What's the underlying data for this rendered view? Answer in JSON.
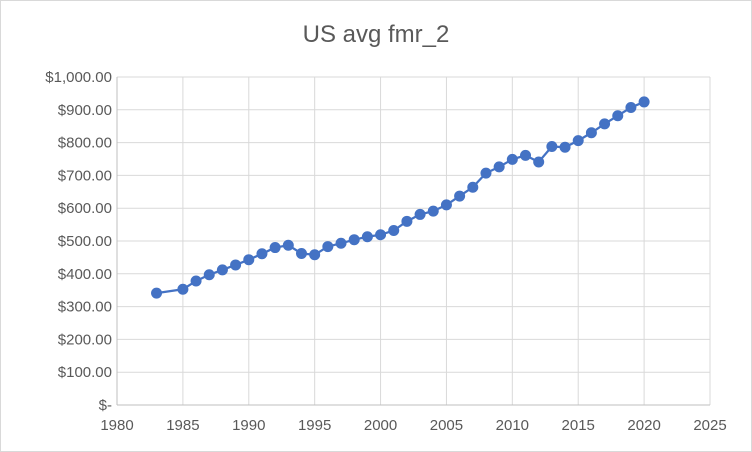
{
  "chart_data": {
    "type": "line",
    "title": "US avg fmr_2",
    "xlabel": "",
    "ylabel": "",
    "xlim": [
      1980,
      2025
    ],
    "ylim": [
      0,
      1000
    ],
    "x_ticks": [
      "1980",
      "1985",
      "1990",
      "1995",
      "2000",
      "2005",
      "2010",
      "2015",
      "2020",
      "2025"
    ],
    "y_ticks": [
      "$-",
      "$100.00",
      "$200.00",
      "$300.00",
      "$400.00",
      "$500.00",
      "$600.00",
      "$700.00",
      "$800.00",
      "$900.00",
      "$1,000.00"
    ],
    "grid": true,
    "legend": "none",
    "series": [
      {
        "color": "#4472c4",
        "x": [
          1983,
          1985,
          1986,
          1987,
          1988,
          1989,
          1990,
          1991,
          1992,
          1993,
          1994,
          1995,
          1996,
          1997,
          1998,
          1999,
          2000,
          2001,
          2002,
          2003,
          2004,
          2005,
          2006,
          2007,
          2008,
          2009,
          2010,
          2011,
          2012,
          2013,
          2014,
          2015,
          2016,
          2017,
          2018,
          2019,
          2020
        ],
        "y": [
          341,
          353,
          378,
          397,
          412,
          427,
          443,
          461,
          480,
          487,
          462,
          458,
          483,
          493,
          504,
          513,
          519,
          532,
          560,
          581,
          591,
          610,
          637,
          664,
          707,
          726,
          749,
          761,
          741,
          788,
          786,
          806,
          830,
          857,
          882,
          907,
          924
        ]
      }
    ]
  }
}
